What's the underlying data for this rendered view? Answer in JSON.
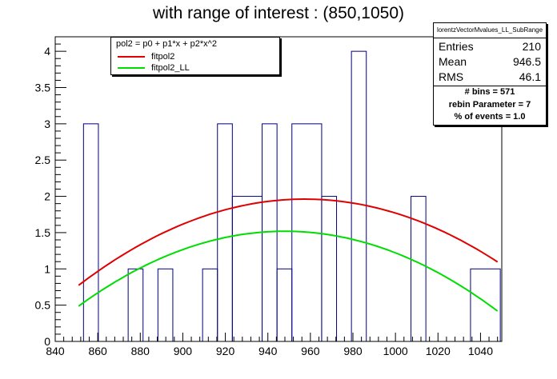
{
  "title": "with range of interest : (850,1050)",
  "legend": {
    "header": "pol2 = p0 + p1*x + p2*x^2",
    "entries": [
      {
        "label": "fitpol2",
        "color": "#e00000"
      },
      {
        "label": "fitpol2_LL",
        "color": "#00dd00"
      }
    ]
  },
  "stats": {
    "name": "lorentzVectorMvalues_LL_SubRange",
    "rows": [
      {
        "key": "Entries",
        "value": "210"
      },
      {
        "key": "Mean",
        "value": "946.5"
      },
      {
        "key": "RMS",
        "value": "46.1"
      }
    ]
  },
  "params": [
    "# bins = 571",
    "rebin Parameter = 7",
    "% of events = 1.0"
  ],
  "chart_data": {
    "type": "histogram",
    "xlim": [
      840,
      1050
    ],
    "ylim": [
      0,
      4.2
    ],
    "x_ticks": [
      "840",
      "860",
      "880",
      "900",
      "920",
      "940",
      "960",
      "980",
      "1000",
      "1020",
      "1040"
    ],
    "y_ticks": [
      "0",
      "0.5",
      "1",
      "1.5",
      "2",
      "2.5",
      "3",
      "3.5",
      "4"
    ],
    "histogram_color": "#000080",
    "bins": [
      {
        "x0": 853.3,
        "x1": 860.3,
        "y": 3
      },
      {
        "x0": 860.3,
        "x1": 874.3,
        "y": 0
      },
      {
        "x0": 874.3,
        "x1": 881.3,
        "y": 1
      },
      {
        "x0": 881.3,
        "x1": 888.3,
        "y": 0
      },
      {
        "x0": 888.3,
        "x1": 895.3,
        "y": 1
      },
      {
        "x0": 895.3,
        "x1": 909.3,
        "y": 0
      },
      {
        "x0": 909.3,
        "x1": 916.3,
        "y": 1
      },
      {
        "x0": 916.3,
        "x1": 923.3,
        "y": 3
      },
      {
        "x0": 923.3,
        "x1": 937.3,
        "y": 2
      },
      {
        "x0": 937.3,
        "x1": 944.3,
        "y": 3
      },
      {
        "x0": 944.3,
        "x1": 951.3,
        "y": 1
      },
      {
        "x0": 951.3,
        "x1": 965.3,
        "y": 3
      },
      {
        "x0": 965.3,
        "x1": 972.3,
        "y": 2
      },
      {
        "x0": 972.3,
        "x1": 979.3,
        "y": 0
      },
      {
        "x0": 979.3,
        "x1": 986.3,
        "y": 4
      },
      {
        "x0": 986.3,
        "x1": 1007.3,
        "y": 0
      },
      {
        "x0": 1007.3,
        "x1": 1014.3,
        "y": 2
      },
      {
        "x0": 1014.3,
        "x1": 1035.3,
        "y": 0
      },
      {
        "x0": 1035.3,
        "x1": 1049.3,
        "y": 1
      }
    ],
    "curves": [
      {
        "name": "fitpol2",
        "color": "#e00000",
        "x": [
          851,
          880,
          920,
          958,
          1000,
          1048
        ],
        "y": [
          0.78,
          1.33,
          1.8,
          1.97,
          1.78,
          1.09
        ]
      },
      {
        "name": "fitpol2_LL",
        "color": "#00dd00",
        "x": [
          851,
          880,
          920,
          948,
          1000,
          1048
        ],
        "y": [
          0.52,
          0.99,
          1.38,
          1.52,
          1.3,
          0.38
        ]
      }
    ]
  }
}
